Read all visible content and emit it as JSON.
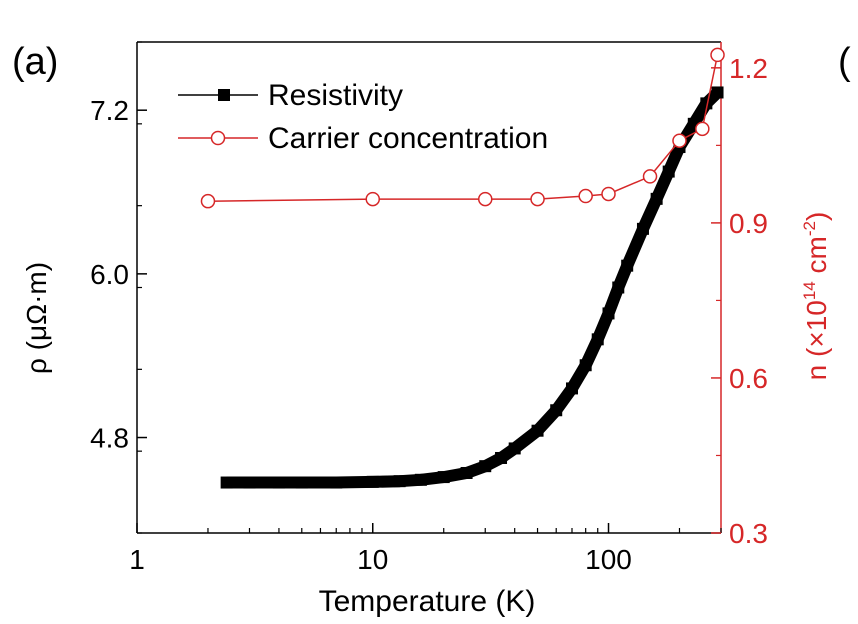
{
  "panel_label": "(a)",
  "next_panel_label": "(",
  "colors": {
    "resistivity": "#000000",
    "carrier": "#d62728",
    "right_axis": "#d62728",
    "axis": "#000000"
  },
  "chart_data": {
    "type": "line",
    "xlabel": "Temperature (K)",
    "xscale": "log",
    "xlim": [
      1,
      300
    ],
    "x_ticks": [
      {
        "value": 1,
        "label": "1"
      },
      {
        "value": 10,
        "label": "10"
      },
      {
        "value": 100,
        "label": "100"
      }
    ],
    "ylabel_left": "ρ (μΩ·m)",
    "ylim_left": [
      4.1,
      7.7
    ],
    "y_ticks_left": [
      {
        "value": 4.8,
        "label": "4.8"
      },
      {
        "value": 6.0,
        "label": "6.0"
      },
      {
        "value": 7.2,
        "label": "7.2"
      }
    ],
    "ylabel_right": {
      "main": "n (×10",
      "exp": "14",
      "unit": " cm",
      "unit_exp": "-2",
      "close": ")"
    },
    "ylim_right": [
      0.3,
      1.25
    ],
    "y_ticks_right": [
      {
        "value": 0.3,
        "label": "0.3"
      },
      {
        "value": 0.6,
        "label": "0.6"
      },
      {
        "value": 0.9,
        "label": "0.9"
      },
      {
        "value": 1.2,
        "label": "1.2"
      }
    ],
    "legend_position": "top-left",
    "series": [
      {
        "name": "Resistivity",
        "axis": "left",
        "marker": "filled-square",
        "x": [
          2.4,
          3,
          4,
          5,
          7,
          10,
          13,
          16,
          20,
          25,
          30,
          35,
          40,
          50,
          60,
          70,
          80,
          90,
          100,
          110,
          120,
          140,
          160,
          180,
          200,
          230,
          260,
          290
        ],
        "y": [
          4.47,
          4.47,
          4.47,
          4.47,
          4.47,
          4.475,
          4.48,
          4.49,
          4.51,
          4.54,
          4.59,
          4.65,
          4.72,
          4.85,
          5.0,
          5.16,
          5.33,
          5.52,
          5.71,
          5.9,
          6.06,
          6.33,
          6.55,
          6.75,
          6.93,
          7.1,
          7.25,
          7.33
        ]
      },
      {
        "name": "Carrier concentration",
        "axis": "right",
        "marker": "open-circle",
        "x": [
          2,
          10,
          30,
          50,
          80,
          100,
          150,
          200,
          250,
          290
        ],
        "y": [
          0.942,
          0.946,
          0.946,
          0.946,
          0.952,
          0.956,
          0.99,
          1.059,
          1.082,
          1.225
        ]
      }
    ]
  }
}
